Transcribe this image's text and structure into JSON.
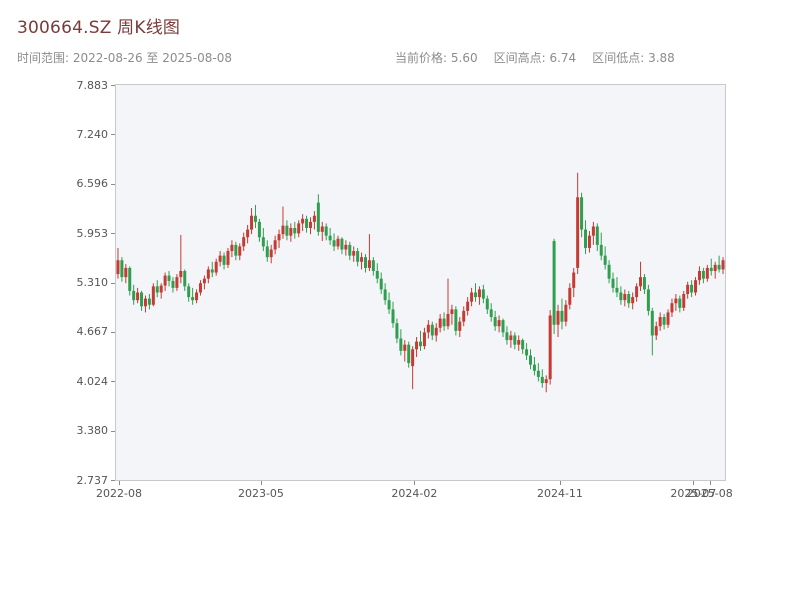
{
  "header": {
    "title": "300664.SZ 周K线图",
    "subtitle": "时间范围: 2022-08-26 至 2025-08-08",
    "stats": [
      {
        "label": "当前价格:",
        "value": "5.60"
      },
      {
        "label": "区间高点:",
        "value": "6.74"
      },
      {
        "label": "区间低点:",
        "value": "3.88"
      }
    ]
  },
  "colors": {
    "title": "#7b3a3a",
    "muted": "#8c8c8c",
    "plot_bg": "#f4f5f9",
    "up": "#c53a32",
    "down": "#2f9e4f"
  },
  "chart_data": {
    "type": "candlestick",
    "title": "300664.SZ 周K线图",
    "time_range": "2022-08-26 至 2025-08-08",
    "current_price": 5.6,
    "period_high": 6.74,
    "period_low": 3.88,
    "ylim": [
      2.737,
      7.883
    ],
    "y_ticks": [
      7.883,
      7.24,
      6.596,
      5.953,
      5.31,
      4.667,
      4.024,
      3.38,
      2.737
    ],
    "y_tick_labels": [
      "7.883",
      "7.240",
      "6.596",
      "5.953",
      "5.310",
      "4.667",
      "4.024",
      "3.380",
      "2.737"
    ],
    "x_ticks": [
      {
        "label": "2022-08",
        "pos": 0.005
      },
      {
        "label": "2023-05",
        "pos": 0.238
      },
      {
        "label": "2024-02",
        "pos": 0.49
      },
      {
        "label": "2024-11",
        "pos": 0.729
      },
      {
        "label": "2025-07",
        "pos": 0.948
      },
      {
        "label": "2025-08",
        "pos": 0.975
      }
    ],
    "up_color": "#c53a32",
    "down_color": "#2f9e4f",
    "candles": [
      [
        5.42,
        5.76,
        5.36,
        5.6
      ],
      [
        5.6,
        5.64,
        5.32,
        5.38
      ],
      [
        5.38,
        5.55,
        5.3,
        5.5
      ],
      [
        5.5,
        5.52,
        5.14,
        5.2
      ],
      [
        5.2,
        5.28,
        5.02,
        5.08
      ],
      [
        5.08,
        5.24,
        5.04,
        5.18
      ],
      [
        5.18,
        5.2,
        4.94,
        5.0
      ],
      [
        5.0,
        5.14,
        4.92,
        5.1
      ],
      [
        5.1,
        5.16,
        4.96,
        5.02
      ],
      [
        5.02,
        5.3,
        5.0,
        5.26
      ],
      [
        5.26,
        5.34,
        5.12,
        5.18
      ],
      [
        5.18,
        5.3,
        5.1,
        5.27
      ],
      [
        5.27,
        5.44,
        5.2,
        5.4
      ],
      [
        5.4,
        5.46,
        5.26,
        5.33
      ],
      [
        5.33,
        5.38,
        5.18,
        5.24
      ],
      [
        5.24,
        5.42,
        5.2,
        5.38
      ],
      [
        5.38,
        5.93,
        5.3,
        5.46
      ],
      [
        5.46,
        5.48,
        5.2,
        5.26
      ],
      [
        5.26,
        5.3,
        5.06,
        5.12
      ],
      [
        5.12,
        5.24,
        5.02,
        5.08
      ],
      [
        5.08,
        5.22,
        5.04,
        5.18
      ],
      [
        5.18,
        5.34,
        5.14,
        5.3
      ],
      [
        5.3,
        5.4,
        5.22,
        5.36
      ],
      [
        5.36,
        5.52,
        5.3,
        5.48
      ],
      [
        5.48,
        5.58,
        5.38,
        5.44
      ],
      [
        5.44,
        5.62,
        5.4,
        5.58
      ],
      [
        5.58,
        5.72,
        5.52,
        5.66
      ],
      [
        5.66,
        5.7,
        5.48,
        5.54
      ],
      [
        5.54,
        5.76,
        5.5,
        5.72
      ],
      [
        5.72,
        5.86,
        5.64,
        5.8
      ],
      [
        5.8,
        5.84,
        5.6,
        5.66
      ],
      [
        5.66,
        5.82,
        5.6,
        5.78
      ],
      [
        5.78,
        5.96,
        5.72,
        5.9
      ],
      [
        5.9,
        6.06,
        5.82,
        6.0
      ],
      [
        6.0,
        6.28,
        5.94,
        6.18
      ],
      [
        6.18,
        6.32,
        6.02,
        6.1
      ],
      [
        6.1,
        6.14,
        5.84,
        5.9
      ],
      [
        5.9,
        6.02,
        5.72,
        5.78
      ],
      [
        5.78,
        5.86,
        5.58,
        5.64
      ],
      [
        5.64,
        5.8,
        5.56,
        5.74
      ],
      [
        5.74,
        5.92,
        5.68,
        5.86
      ],
      [
        5.86,
        6.0,
        5.76,
        5.94
      ],
      [
        5.94,
        6.3,
        5.88,
        6.05
      ],
      [
        6.05,
        6.12,
        5.86,
        5.92
      ],
      [
        5.92,
        6.08,
        5.84,
        6.02
      ],
      [
        6.02,
        6.1,
        5.88,
        5.95
      ],
      [
        5.95,
        6.12,
        5.9,
        6.08
      ],
      [
        6.08,
        6.2,
        5.98,
        6.14
      ],
      [
        6.14,
        6.18,
        5.96,
        6.02
      ],
      [
        6.02,
        6.16,
        5.94,
        6.1
      ],
      [
        6.1,
        6.24,
        6.0,
        6.18
      ],
      [
        6.35,
        6.46,
        5.92,
        5.97
      ],
      [
        5.97,
        6.1,
        5.85,
        6.04
      ],
      [
        6.04,
        6.08,
        5.86,
        5.92
      ],
      [
        5.92,
        6.02,
        5.8,
        5.86
      ],
      [
        5.86,
        5.95,
        5.72,
        5.78
      ],
      [
        5.78,
        5.92,
        5.74,
        5.88
      ],
      [
        5.88,
        5.9,
        5.68,
        5.74
      ],
      [
        5.74,
        5.86,
        5.66,
        5.8
      ],
      [
        5.8,
        5.84,
        5.6,
        5.66
      ],
      [
        5.66,
        5.78,
        5.58,
        5.72
      ],
      [
        5.72,
        5.76,
        5.52,
        5.58
      ],
      [
        5.58,
        5.7,
        5.48,
        5.64
      ],
      [
        5.64,
        5.68,
        5.44,
        5.5
      ],
      [
        5.5,
        5.94,
        5.46,
        5.6
      ],
      [
        5.6,
        5.64,
        5.4,
        5.46
      ],
      [
        5.46,
        5.56,
        5.3,
        5.36
      ],
      [
        5.36,
        5.44,
        5.16,
        5.22
      ],
      [
        5.22,
        5.3,
        5.02,
        5.08
      ],
      [
        5.08,
        5.18,
        4.9,
        4.96
      ],
      [
        4.96,
        5.06,
        4.72,
        4.78
      ],
      [
        4.78,
        4.84,
        4.52,
        4.58
      ],
      [
        4.58,
        4.7,
        4.36,
        4.42
      ],
      [
        4.42,
        4.56,
        4.28,
        4.5
      ],
      [
        4.5,
        4.54,
        4.2,
        4.26
      ],
      [
        4.22,
        4.48,
        3.92,
        4.44
      ],
      [
        4.44,
        4.6,
        4.34,
        4.54
      ],
      [
        4.54,
        4.68,
        4.42,
        4.48
      ],
      [
        4.48,
        4.72,
        4.44,
        4.66
      ],
      [
        4.66,
        4.82,
        4.58,
        4.76
      ],
      [
        4.76,
        4.8,
        4.56,
        4.62
      ],
      [
        4.62,
        4.78,
        4.54,
        4.72
      ],
      [
        4.72,
        4.9,
        4.66,
        4.84
      ],
      [
        4.84,
        4.92,
        4.68,
        4.74
      ],
      [
        4.74,
        5.36,
        4.7,
        4.9
      ],
      [
        4.9,
        5.02,
        4.76,
        4.96
      ],
      [
        4.96,
        5.0,
        4.62,
        4.68
      ],
      [
        4.68,
        4.86,
        4.6,
        4.8
      ],
      [
        4.8,
        5.0,
        4.74,
        4.94
      ],
      [
        4.94,
        5.12,
        4.88,
        5.06
      ],
      [
        5.06,
        5.24,
        5.0,
        5.18
      ],
      [
        5.18,
        5.3,
        5.06,
        5.12
      ],
      [
        5.12,
        5.26,
        5.02,
        5.22
      ],
      [
        5.22,
        5.28,
        5.04,
        5.1
      ],
      [
        5.1,
        5.14,
        4.9,
        4.96
      ],
      [
        4.96,
        5.04,
        4.8,
        4.86
      ],
      [
        4.86,
        4.94,
        4.68,
        4.74
      ],
      [
        4.74,
        4.88,
        4.66,
        4.82
      ],
      [
        4.82,
        4.84,
        4.6,
        4.66
      ],
      [
        4.66,
        4.74,
        4.5,
        4.56
      ],
      [
        4.56,
        4.68,
        4.46,
        4.62
      ],
      [
        4.62,
        4.66,
        4.44,
        4.5
      ],
      [
        4.5,
        4.62,
        4.42,
        4.56
      ],
      [
        4.56,
        4.58,
        4.38,
        4.44
      ],
      [
        4.44,
        4.52,
        4.3,
        4.36
      ],
      [
        4.36,
        4.44,
        4.18,
        4.24
      ],
      [
        4.24,
        4.34,
        4.1,
        4.16
      ],
      [
        4.16,
        4.26,
        4.02,
        4.08
      ],
      [
        4.08,
        4.18,
        3.94,
        4.0
      ],
      [
        4.0,
        4.1,
        3.88,
        4.05
      ],
      [
        4.05,
        4.95,
        3.98,
        4.88
      ],
      [
        5.85,
        5.88,
        4.64,
        4.76
      ],
      [
        4.76,
        5.02,
        4.6,
        4.94
      ],
      [
        4.94,
        5.1,
        4.7,
        4.8
      ],
      [
        4.8,
        5.08,
        4.74,
        5.02
      ],
      [
        5.02,
        5.3,
        4.96,
        5.24
      ],
      [
        5.24,
        5.5,
        5.12,
        5.44
      ],
      [
        5.5,
        6.74,
        5.42,
        6.42
      ],
      [
        6.42,
        6.48,
        5.9,
        6.0
      ],
      [
        6.0,
        6.12,
        5.68,
        5.76
      ],
      [
        5.76,
        5.98,
        5.7,
        5.92
      ],
      [
        5.92,
        6.1,
        5.8,
        6.04
      ],
      [
        6.04,
        6.08,
        5.72,
        5.8
      ],
      [
        5.8,
        5.96,
        5.6,
        5.66
      ],
      [
        5.66,
        5.78,
        5.48,
        5.54
      ],
      [
        5.54,
        5.6,
        5.3,
        5.36
      ],
      [
        5.36,
        5.44,
        5.18,
        5.24
      ],
      [
        5.24,
        5.38,
        5.12,
        5.18
      ],
      [
        5.18,
        5.26,
        5.02,
        5.08
      ],
      [
        5.08,
        5.22,
        5.0,
        5.16
      ],
      [
        5.16,
        5.2,
        4.98,
        5.04
      ],
      [
        5.04,
        5.18,
        4.96,
        5.12
      ],
      [
        5.12,
        5.3,
        5.06,
        5.26
      ],
      [
        5.26,
        5.58,
        5.2,
        5.38
      ],
      [
        5.38,
        5.42,
        5.16,
        5.22
      ],
      [
        5.22,
        5.28,
        4.88,
        4.94
      ],
      [
        4.94,
        4.98,
        4.36,
        4.62
      ],
      [
        4.62,
        4.8,
        4.56,
        4.74
      ],
      [
        4.74,
        4.92,
        4.68,
        4.86
      ],
      [
        4.86,
        4.9,
        4.7,
        4.76
      ],
      [
        4.76,
        4.96,
        4.72,
        4.92
      ],
      [
        4.92,
        5.1,
        4.86,
        5.04
      ],
      [
        5.04,
        5.16,
        4.94,
        5.1
      ],
      [
        5.1,
        5.14,
        4.92,
        4.98
      ],
      [
        4.98,
        5.2,
        4.94,
        5.16
      ],
      [
        5.16,
        5.32,
        5.1,
        5.28
      ],
      [
        5.28,
        5.34,
        5.12,
        5.18
      ],
      [
        5.18,
        5.38,
        5.14,
        5.34
      ],
      [
        5.34,
        5.52,
        5.28,
        5.46
      ],
      [
        5.46,
        5.5,
        5.3,
        5.36
      ],
      [
        5.36,
        5.54,
        5.32,
        5.5
      ],
      [
        5.5,
        5.62,
        5.4,
        5.46
      ],
      [
        5.46,
        5.58,
        5.36,
        5.54
      ],
      [
        5.54,
        5.66,
        5.44,
        5.48
      ],
      [
        5.48,
        5.64,
        5.42,
        5.6
      ]
    ]
  }
}
